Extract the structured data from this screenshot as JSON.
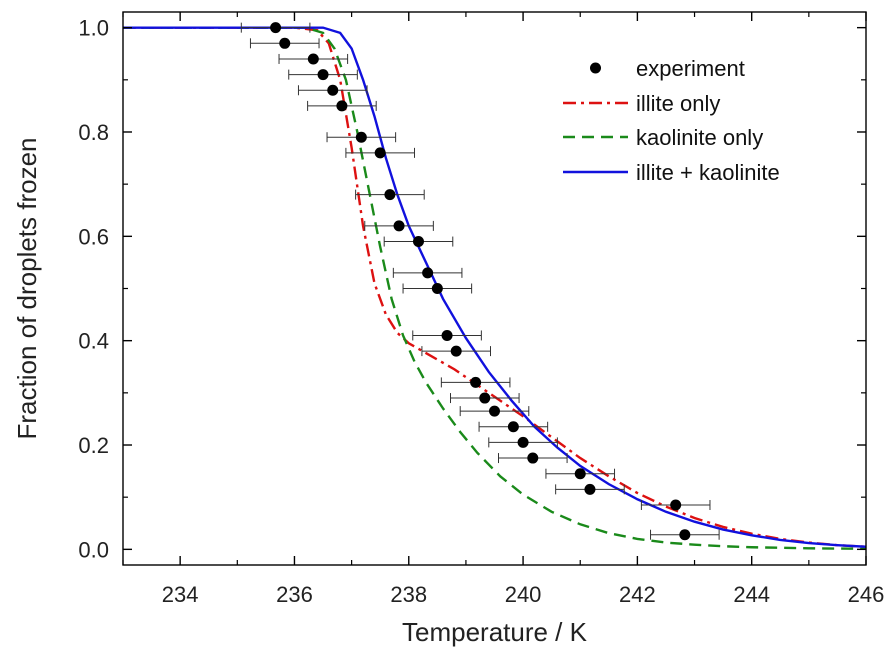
{
  "chart_data": {
    "type": "scatter",
    "title": "",
    "xlabel": "Temperature / K",
    "ylabel": "Fraction of droplets frozen",
    "xlim": [
      233,
      246
    ],
    "ylim": [
      -0.03,
      1.03
    ],
    "xticks": [
      234,
      236,
      238,
      240,
      242,
      244,
      246
    ],
    "yticks": [
      0.0,
      0.2,
      0.4,
      0.6,
      0.8,
      1.0
    ],
    "xtick_labels": [
      "234",
      "236",
      "238",
      "240",
      "242",
      "244",
      "246"
    ],
    "ytick_labels": [
      "0.0",
      "0.2",
      "0.4",
      "0.6",
      "0.8",
      "1.0"
    ],
    "grid": false,
    "legend_position": "top-right",
    "series": [
      {
        "name": "experiment",
        "kind": "scatter",
        "color": "#000000",
        "points": [
          {
            "x": 235.67,
            "y": 1.0,
            "xerr": 0.6
          },
          {
            "x": 235.83,
            "y": 0.97,
            "xerr": 0.6
          },
          {
            "x": 236.33,
            "y": 0.94,
            "xerr": 0.6
          },
          {
            "x": 236.5,
            "y": 0.91,
            "xerr": 0.6
          },
          {
            "x": 236.67,
            "y": 0.88,
            "xerr": 0.6
          },
          {
            "x": 236.83,
            "y": 0.85,
            "xerr": 0.6
          },
          {
            "x": 237.17,
            "y": 0.79,
            "xerr": 0.6
          },
          {
            "x": 237.5,
            "y": 0.76,
            "xerr": 0.6
          },
          {
            "x": 237.67,
            "y": 0.68,
            "xerr": 0.6
          },
          {
            "x": 237.83,
            "y": 0.62,
            "xerr": 0.6
          },
          {
            "x": 238.17,
            "y": 0.59,
            "xerr": 0.6
          },
          {
            "x": 238.33,
            "y": 0.53,
            "xerr": 0.6
          },
          {
            "x": 238.5,
            "y": 0.5,
            "xerr": 0.6
          },
          {
            "x": 238.67,
            "y": 0.41,
            "xerr": 0.6
          },
          {
            "x": 238.83,
            "y": 0.38,
            "xerr": 0.6
          },
          {
            "x": 239.17,
            "y": 0.32,
            "xerr": 0.6
          },
          {
            "x": 239.33,
            "y": 0.29,
            "xerr": 0.6
          },
          {
            "x": 239.5,
            "y": 0.265,
            "xerr": 0.6
          },
          {
            "x": 239.83,
            "y": 0.235,
            "xerr": 0.6
          },
          {
            "x": 240.0,
            "y": 0.205,
            "xerr": 0.6
          },
          {
            "x": 240.17,
            "y": 0.175,
            "xerr": 0.6
          },
          {
            "x": 241.0,
            "y": 0.145,
            "xerr": 0.6
          },
          {
            "x": 241.17,
            "y": 0.115,
            "xerr": 0.6
          },
          {
            "x": 242.67,
            "y": 0.085,
            "xerr": 0.6
          },
          {
            "x": 242.83,
            "y": 0.028,
            "xerr": 0.6
          }
        ]
      },
      {
        "name": "illite only",
        "kind": "line",
        "dash": "dash-dot",
        "color": "#dd1111",
        "x": [
          233,
          236.0,
          236.4,
          236.6,
          236.8,
          237.0,
          237.2,
          237.4,
          237.6,
          237.8,
          238.0,
          238.4,
          238.8,
          239.2,
          239.6,
          240.0,
          240.5,
          241.0,
          241.5,
          242.0,
          242.5,
          243.0,
          243.5,
          244.0,
          244.5,
          245.0,
          245.5,
          246.0
        ],
        "y": [
          1.0,
          1.0,
          0.995,
          0.97,
          0.9,
          0.77,
          0.62,
          0.51,
          0.45,
          0.415,
          0.395,
          0.37,
          0.345,
          0.315,
          0.285,
          0.255,
          0.215,
          0.175,
          0.14,
          0.108,
          0.082,
          0.06,
          0.043,
          0.03,
          0.02,
          0.013,
          0.008,
          0.005
        ]
      },
      {
        "name": "kaolinite only",
        "kind": "line",
        "dash": "dashed",
        "color": "#1a8a1a",
        "x": [
          233,
          236.2,
          236.5,
          236.7,
          236.9,
          237.1,
          237.3,
          237.5,
          237.7,
          237.9,
          238.1,
          238.3,
          238.6,
          238.9,
          239.2,
          239.6,
          240.0,
          240.5,
          241.0,
          241.5,
          242.0,
          242.5,
          243.0,
          243.5,
          244.0,
          245.0,
          246.0
        ],
        "y": [
          1.0,
          1.0,
          0.99,
          0.96,
          0.9,
          0.8,
          0.69,
          0.58,
          0.48,
          0.41,
          0.36,
          0.32,
          0.27,
          0.225,
          0.185,
          0.14,
          0.105,
          0.072,
          0.048,
          0.031,
          0.02,
          0.013,
          0.009,
          0.006,
          0.004,
          0.002,
          0.001
        ]
      },
      {
        "name": "illite + kaolinite",
        "kind": "line",
        "dash": "solid",
        "color": "#1111dd",
        "x": [
          233,
          236.0,
          236.5,
          236.8,
          237.0,
          237.2,
          237.4,
          237.6,
          237.8,
          238.0,
          238.3,
          238.6,
          239.0,
          239.4,
          239.8,
          240.2,
          240.6,
          241.0,
          241.5,
          242.0,
          242.5,
          243.0,
          243.5,
          244.0,
          244.5,
          245.0,
          245.5,
          246.0
        ],
        "y": [
          1.0,
          1.0,
          1.0,
          0.99,
          0.96,
          0.9,
          0.83,
          0.75,
          0.68,
          0.62,
          0.55,
          0.48,
          0.405,
          0.34,
          0.285,
          0.235,
          0.195,
          0.16,
          0.125,
          0.096,
          0.072,
          0.053,
          0.038,
          0.027,
          0.018,
          0.012,
          0.008,
          0.005
        ]
      }
    ]
  }
}
